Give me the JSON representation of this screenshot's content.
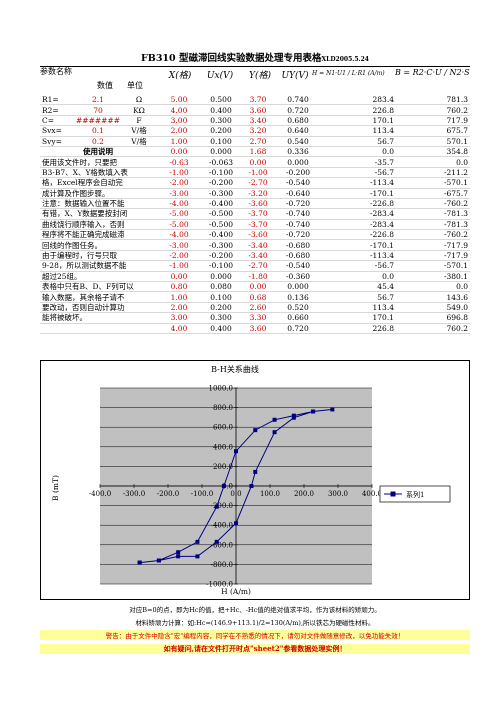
{
  "title_main": "FB310 型磁滞回线实验数据处理专用表格",
  "title_sub": "XLD2005.5.24",
  "headers": {
    "param": "参数名称",
    "value": "数值",
    "unit": "单位",
    "x": "X(格)",
    "ux": "Ux(V)",
    "y": "Y(格)",
    "uy": "UY(V)",
    "h_formula": "H = N1·U1 / L·R1 (A/m)",
    "b_formula": "B = R2·C·U / N2·S"
  },
  "params": [
    {
      "name": "R1=",
      "value": "2.1",
      "unit": "Ω"
    },
    {
      "name": "R2=",
      "value": "70",
      "unit": "KΩ"
    },
    {
      "name": "C=",
      "value": "#######",
      "unit": "F"
    },
    {
      "name": "Svx=",
      "value": "0.1",
      "unit": "V/格"
    },
    {
      "name": "Svy=",
      "value": "0.2",
      "unit": "V/格"
    }
  ],
  "notes_title": "使用说明",
  "notes": [
    "使用该文件时，只要把",
    "B3-B7、X、Y格数填入表",
    "格，Excel程序会自动完",
    "成计算及作图步骤。",
    "注意：数据输入位置不能",
    "有错，X、Y数据要按封闭",
    "曲线饶行顺序输入，否则",
    "程序将不能正确完成磁滞",
    "回线的作图任务。",
    "由于编程时，行号只取",
    "9-28，所以测试数据不能",
    "超过25组。",
    "表格中只有B、D、F列可以",
    "输入数据，其余格子请不",
    "要改动，否则自动计算功",
    "能将被破坏。"
  ],
  "rows": [
    [
      "5.00",
      "0.500",
      "3.70",
      "0.740",
      "283.4",
      "781.3"
    ],
    [
      "4.00",
      "0.400",
      "3.60",
      "0.720",
      "226.8",
      "760.2"
    ],
    [
      "3.00",
      "0.300",
      "3.40",
      "0.680",
      "170.1",
      "717.9"
    ],
    [
      "2.00",
      "0.200",
      "3.20",
      "0.640",
      "113.4",
      "675.7"
    ],
    [
      "1.00",
      "0.100",
      "2.70",
      "0.540",
      "56.7",
      "570.1"
    ],
    [
      "0.00",
      "0.000",
      "1.68",
      "0.336",
      "0.0",
      "354.8"
    ],
    [
      "-0.63",
      "-0.063",
      "0.00",
      "0.000",
      "-35.7",
      "0.0"
    ],
    [
      "-1.00",
      "-0.100",
      "-1.00",
      "-0.200",
      "-56.7",
      "-211.2"
    ],
    [
      "-2.00",
      "-0.200",
      "-2.70",
      "-0.540",
      "-113.4",
      "-570.1"
    ],
    [
      "-3.00",
      "-0.300",
      "-3.20",
      "-0.640",
      "-170.1",
      "-675.7"
    ],
    [
      "-4.00",
      "-0.400",
      "-3.60",
      "-0.720",
      "-226.8",
      "-760.2"
    ],
    [
      "-5.00",
      "-0.500",
      "-3.70",
      "-0.740",
      "-283.4",
      "-781.3"
    ],
    [
      "-5.00",
      "-0.500",
      "-3.70",
      "-0.740",
      "-283.4",
      "-781.3"
    ],
    [
      "-4.00",
      "-0.400",
      "-3.60",
      "-0.720",
      "-226.8",
      "-760.2"
    ],
    [
      "-3.00",
      "-0.300",
      "-3.40",
      "-0.680",
      "-170.1",
      "-717.9"
    ],
    [
      "-2.00",
      "-0.200",
      "-3.40",
      "-0.680",
      "-113.4",
      "-717.9"
    ],
    [
      "-1.00",
      "-0.100",
      "-2.70",
      "-0.540",
      "-56.7",
      "-570.1"
    ],
    [
      "0.00",
      "0.000",
      "-1.80",
      "-0.360",
      "0.0",
      "-380.1"
    ],
    [
      "0.80",
      "0.080",
      "0.00",
      "0.000",
      "45.4",
      "0.0"
    ],
    [
      "1.00",
      "0.100",
      "0.68",
      "0.136",
      "56.7",
      "143.6"
    ],
    [
      "2.00",
      "0.200",
      "2.60",
      "0.520",
      "113.4",
      "549.0"
    ],
    [
      "3.00",
      "0.300",
      "3.30",
      "0.660",
      "170.1",
      "696.8"
    ],
    [
      "4.00",
      "0.400",
      "3.60",
      "0.720",
      "226.8",
      "760.2"
    ]
  ],
  "chart_data": {
    "type": "scatter",
    "title": "B-H关系曲线",
    "xlabel": "H (A/m)",
    "ylabel": "B (mT)",
    "xlim": [
      -400,
      400
    ],
    "ylim": [
      -1000,
      1000
    ],
    "xticks": [
      "-400.0",
      "-300.0",
      "-200.0",
      "-100.0",
      "0.0",
      "100.0",
      "200.0",
      "300.0",
      "400.0"
    ],
    "yticks": [
      "1000.0",
      "800.0",
      "600.0",
      "400.0",
      "200.0",
      "0.0",
      "-200.0",
      "-400.0",
      "-600.0",
      "-800.0",
      "-1000.0"
    ],
    "legend": "系列1",
    "grid": true,
    "series": [
      {
        "name": "系列1",
        "x": [
          283.4,
          226.8,
          170.1,
          113.4,
          56.7,
          0.0,
          -35.7,
          -56.7,
          -113.4,
          -170.1,
          -226.8,
          -283.4,
          -283.4,
          -226.8,
          -170.1,
          -113.4,
          -56.7,
          0.0,
          45.4,
          56.7,
          113.4,
          170.1,
          226.8
        ],
        "y": [
          781.3,
          760.2,
          717.9,
          675.7,
          570.1,
          354.8,
          0.0,
          -211.2,
          -570.1,
          -675.7,
          -760.2,
          -781.3,
          -781.3,
          -760.2,
          -717.9,
          -717.9,
          -570.1,
          -380.1,
          0.0,
          143.6,
          549.0,
          696.8,
          760.2
        ]
      }
    ]
  },
  "footer": {
    "line1": "对应B=0的点，即为Hc的值，把+Hc、-Hc值的绝对值求平均，作为该材料的矫顽力。",
    "line2": "材料矫顽力计算：如:Hc=(146.9+113.1)/2=130(A/m),所以铁芯为硬磁性材料。",
    "line3": "警告：由于文件中隐含\"宏\"编程内容，同学在不熟悉的情况下，请勿对文件做随意修改，以免功能失效！",
    "line4": "如有疑问,请在文件打开时点\"sheet2\"参看数据处理实例！"
  }
}
